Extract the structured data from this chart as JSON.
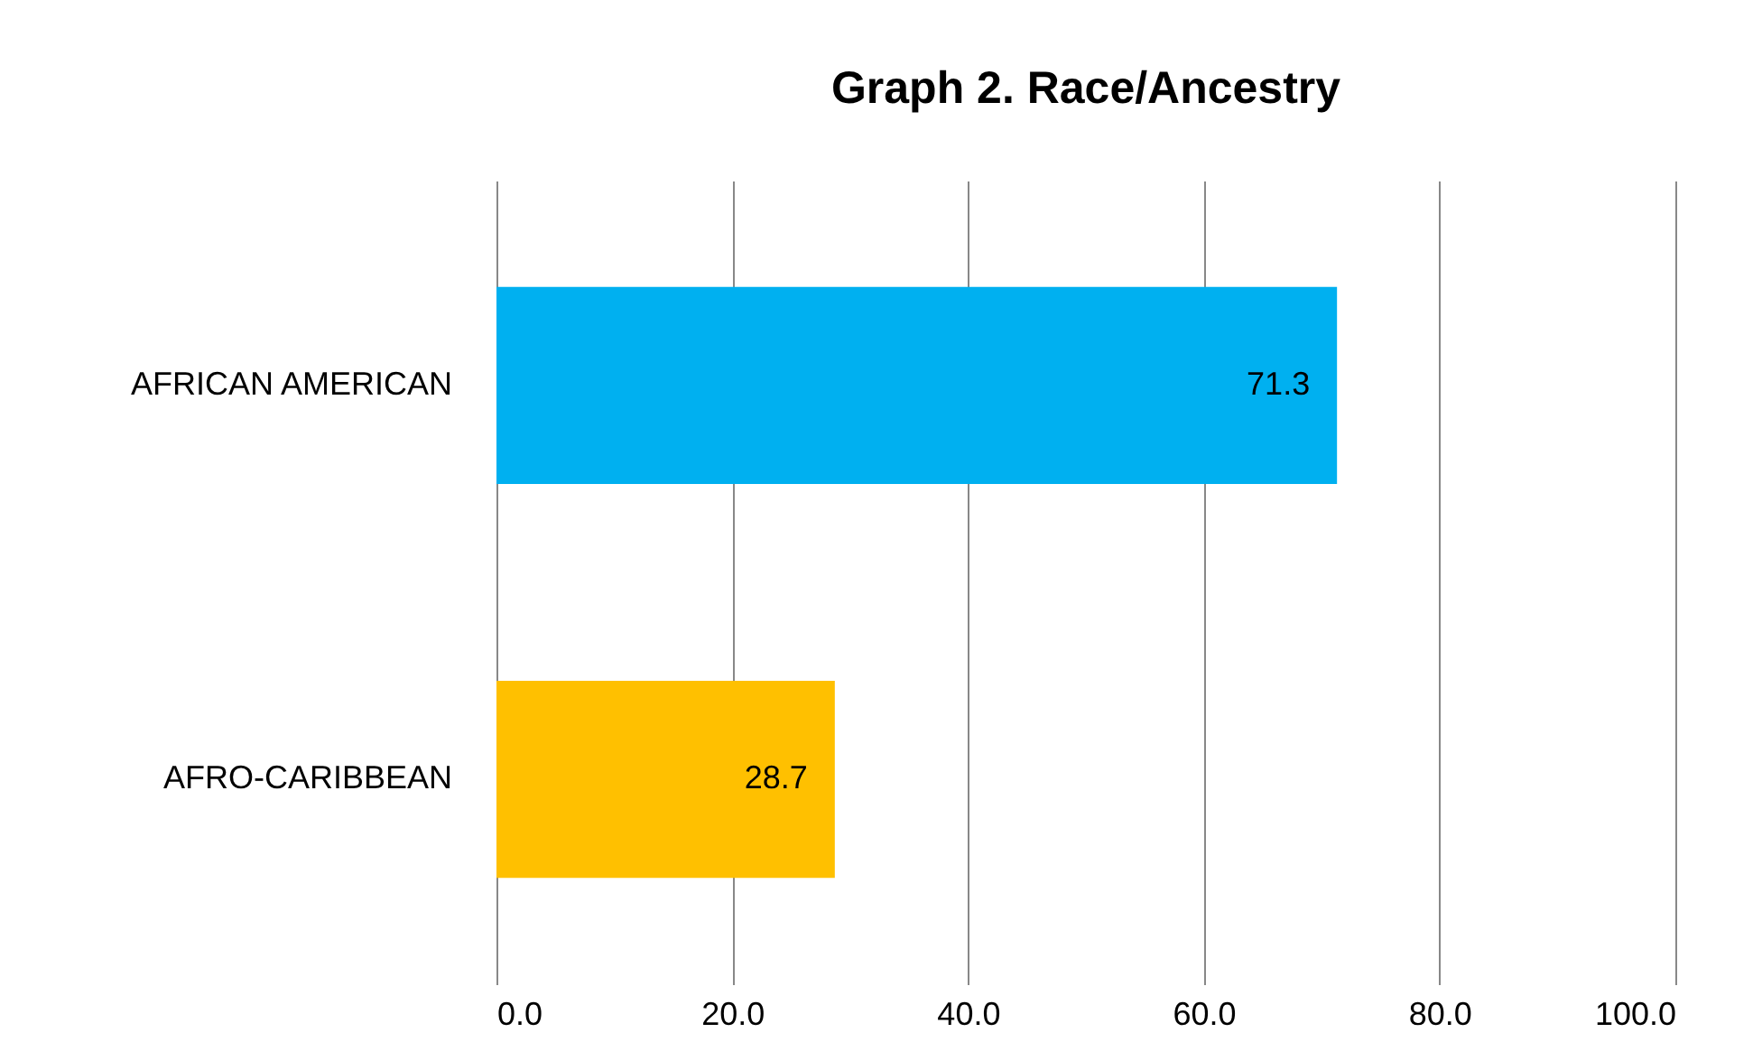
{
  "chart_data": {
    "type": "bar",
    "title": "Graph 2. Race/Ancestry",
    "orientation": "horizontal",
    "categories": [
      "AFRICAN AMERICAN",
      "AFRO-CARIBBEAN"
    ],
    "values": [
      71.3,
      28.7
    ],
    "colors": [
      "#00b0f0",
      "#ffc000"
    ],
    "xlim": [
      0,
      100
    ],
    "xticks": [
      {
        "value": 0,
        "label": "0.0"
      },
      {
        "value": 20,
        "label": "20.0"
      },
      {
        "value": 40,
        "label": "40.0"
      },
      {
        "value": 60,
        "label": "60.0"
      },
      {
        "value": 80,
        "label": "80.0"
      },
      {
        "value": 100,
        "label": "100.0"
      }
    ],
    "grid": "x",
    "data_labels": true
  }
}
